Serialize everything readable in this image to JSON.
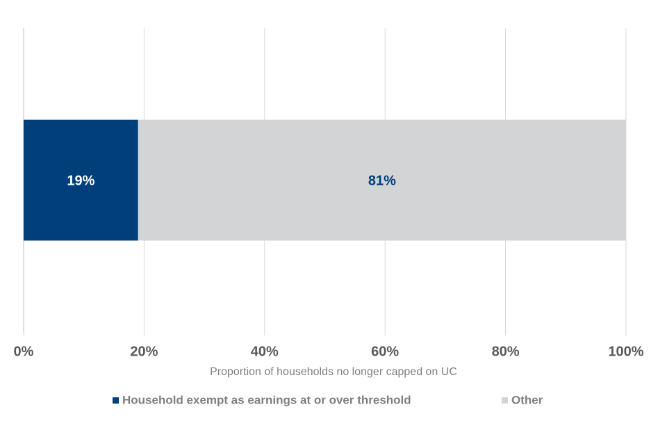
{
  "chart_data": {
    "type": "bar",
    "orientation": "horizontal",
    "stacked": true,
    "categories": [
      null
    ],
    "series": [
      {
        "name": "Household exempt as earnings at or over threshold",
        "color": "#003f7a",
        "label_color": "#ffffff",
        "values": [
          19
        ],
        "value_labels": [
          "19%"
        ]
      },
      {
        "name": "Other",
        "color": "#d3d4d6",
        "label_color": "#003f7a",
        "values": [
          81
        ],
        "value_labels": [
          "81%"
        ]
      }
    ],
    "x_label": "Proportion of households no longer capped on UC",
    "xlim": [
      0,
      100
    ],
    "xticks": [
      {
        "value": 0,
        "label": "0%"
      },
      {
        "value": 20,
        "label": "20%"
      },
      {
        "value": 40,
        "label": "40%"
      },
      {
        "value": 60,
        "label": "60%"
      },
      {
        "value": 80,
        "label": "80%"
      },
      {
        "value": 100,
        "label": "100%"
      }
    ],
    "grid": true,
    "legend": "bottom"
  }
}
